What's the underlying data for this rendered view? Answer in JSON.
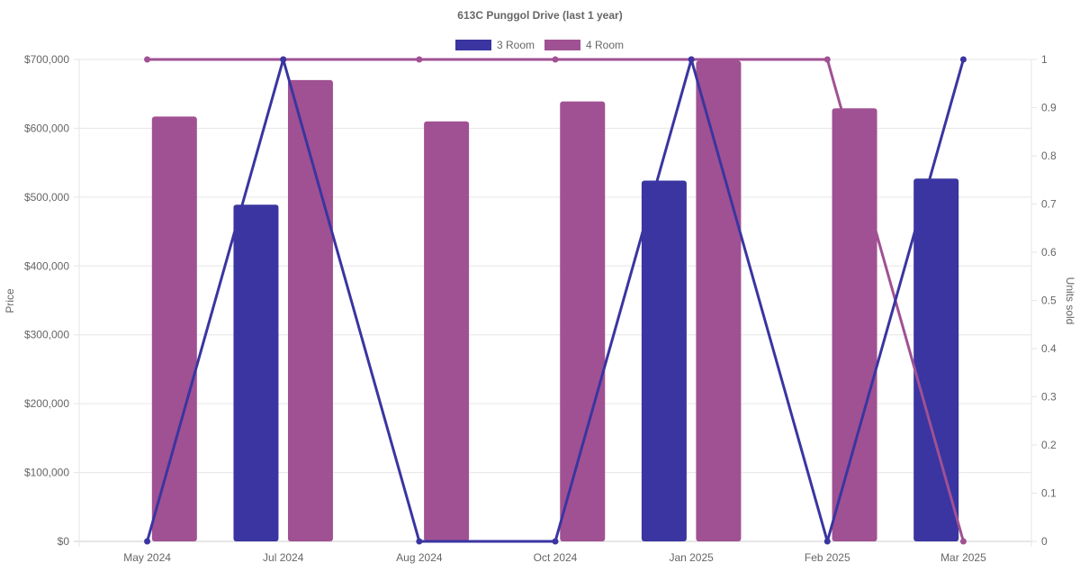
{
  "chart_data": {
    "type": "bar",
    "title": "613C Punggol Drive (last 1 year)",
    "categories": [
      "May 2024",
      "Jul 2024",
      "Aug 2024",
      "Oct 2024",
      "Jan 2025",
      "Feb 2025",
      "Mar 2025"
    ],
    "ylabel": "Price",
    "y2label": "Units sold",
    "ylim": [
      0,
      700000
    ],
    "y2lim": [
      0,
      1
    ],
    "yticks": [
      "$0",
      "$100,000",
      "$200,000",
      "$300,000",
      "$400,000",
      "$500,000",
      "$600,000",
      "$700,000"
    ],
    "y2ticks": [
      "0",
      "0.1",
      "0.2",
      "0.3",
      "0.4",
      "0.5",
      "0.6",
      "0.7",
      "0.8",
      "0.9",
      "1"
    ],
    "grid": true,
    "legend_position": "top-center",
    "series": [
      {
        "name": "3 Room",
        "color": "#3a35a0",
        "price": [
          null,
          489000,
          null,
          null,
          524000,
          null,
          527000
        ],
        "units": [
          0,
          1,
          0,
          0,
          1,
          0,
          1
        ]
      },
      {
        "name": "4 Room",
        "color": "#a05193",
        "price": [
          617000,
          670000,
          610000,
          639000,
          698000,
          629000,
          null
        ],
        "units": [
          1,
          1,
          1,
          1,
          1,
          1,
          0
        ]
      }
    ]
  }
}
